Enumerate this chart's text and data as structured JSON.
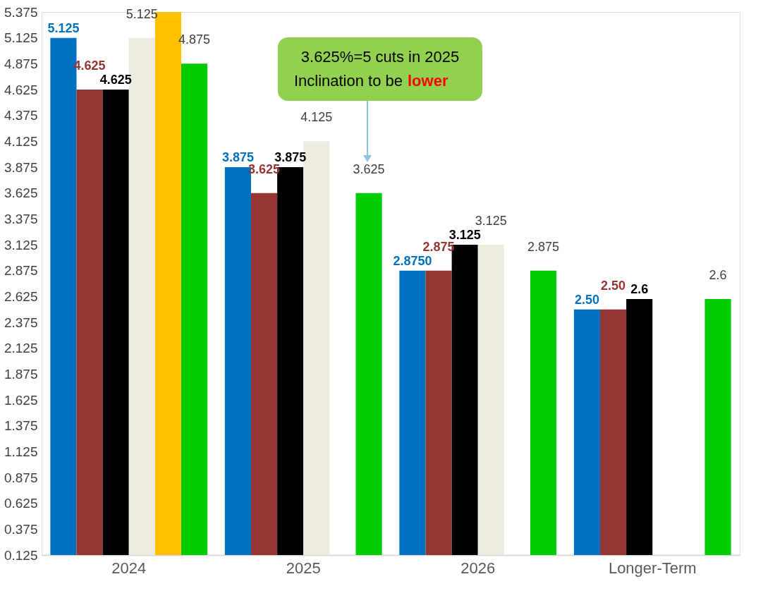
{
  "chart_data": {
    "type": "bar",
    "categories": [
      "2024",
      "2025",
      "2026",
      "Longer-Term"
    ],
    "series": [
      {
        "color": "#0070c0",
        "values": [
          5.125,
          3.875,
          2.875,
          2.5
        ],
        "value_labels": [
          "5.125",
          "3.875",
          "2.8750",
          "2.50"
        ]
      },
      {
        "color": "#943634",
        "values": [
          4.625,
          3.625,
          2.875,
          2.5
        ],
        "value_labels": [
          "4.625",
          "3.625",
          "2.875",
          "2.50"
        ]
      },
      {
        "color": "#000000",
        "values": [
          4.625,
          3.875,
          3.125,
          2.6
        ],
        "value_labels": [
          "4.625",
          "3.875",
          "3.125",
          "2.6"
        ]
      },
      {
        "color": "#eeece1",
        "values": [
          5.125,
          4.125,
          3.125,
          null
        ],
        "value_labels": [
          "5.125",
          "4.125",
          "3.125",
          null
        ]
      },
      {
        "color": "#ffc000",
        "values": [
          5.375,
          null,
          null,
          null
        ],
        "value_labels": [
          null,
          null,
          null,
          null
        ]
      },
      {
        "color": "#00cc00",
        "values": [
          4.875,
          3.625,
          2.875,
          2.6
        ],
        "value_labels": [
          "4.875",
          "3.625",
          "2.875",
          "2.6"
        ]
      }
    ],
    "ylim": [
      0.125,
      5.375
    ],
    "yticks": [
      0.125,
      0.375,
      0.625,
      0.875,
      1.125,
      1.375,
      1.625,
      1.875,
      2.125,
      2.375,
      2.625,
      2.875,
      3.125,
      3.375,
      3.625,
      3.875,
      4.125,
      4.375,
      4.625,
      4.875,
      5.125,
      5.375
    ],
    "grid": false,
    "legend": false,
    "annotations": [
      "3.625%=5 cuts in 2025\nInclination to be lower"
    ]
  }
}
